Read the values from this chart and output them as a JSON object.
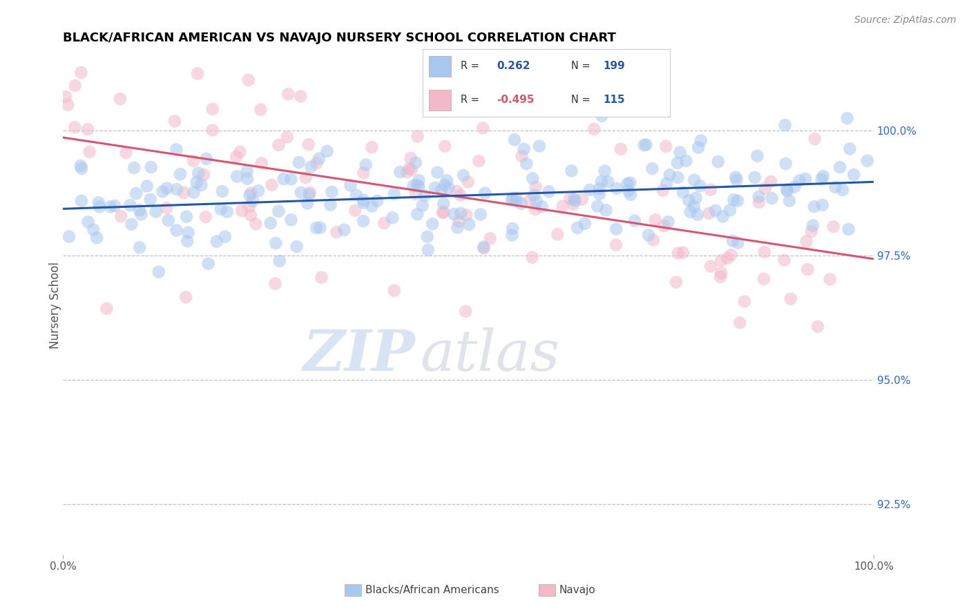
{
  "title": "BLACK/AFRICAN AMERICAN VS NAVAJO NURSERY SCHOOL CORRELATION CHART",
  "source_text": "Source: ZipAtlas.com",
  "ylabel": "Nursery School",
  "blue_label": "Blacks/African Americans",
  "pink_label": "Navajo",
  "blue_color": "#a8c8f0",
  "pink_color": "#f4b8c8",
  "blue_line_color": "#2457a4",
  "pink_line_color": "#d9546e",
  "xmin": 0.0,
  "xmax": 100.0,
  "ymin": 91.5,
  "ymax": 101.5,
  "yticks": [
    92.5,
    95.0,
    97.5,
    100.0
  ],
  "legend_blue_r_val": "0.262",
  "legend_blue_n_val": "199",
  "legend_pink_r_val": "-0.495",
  "legend_pink_n_val": "115",
  "blue_R": 0.262,
  "blue_N": 199,
  "pink_R": -0.495,
  "pink_N": 115,
  "bg_color": "#ffffff",
  "grid_color": "#bbbbbb",
  "title_color": "#000000",
  "title_fontsize": 13,
  "right_tick_color": "#3366cc",
  "seed_blue": 42,
  "seed_pink": 123
}
